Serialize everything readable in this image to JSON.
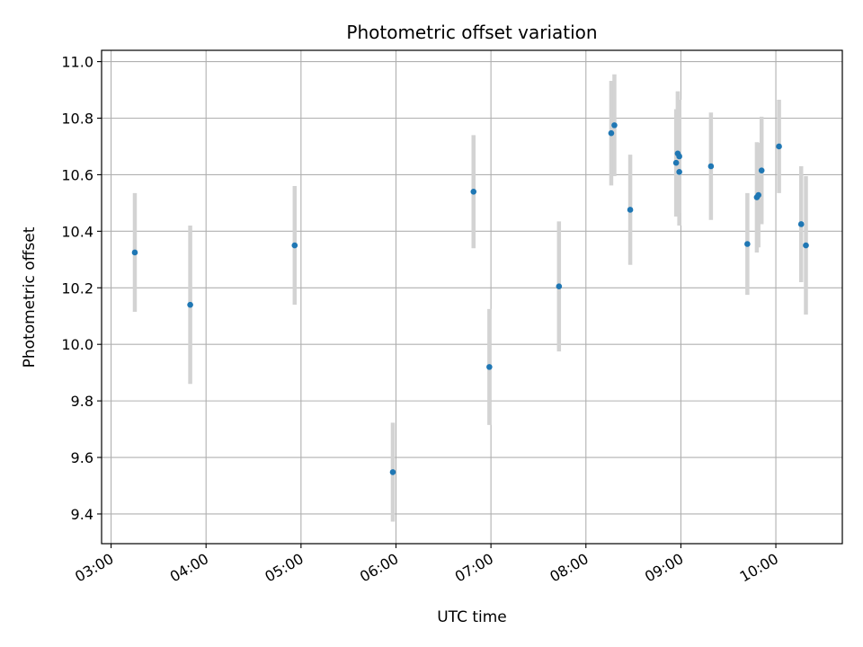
{
  "chart_data": {
    "type": "scatter",
    "title": "Photometric offset variation",
    "xlabel": "UTC time",
    "ylabel": "Photometric offset",
    "xlim": [
      "02:54",
      "10:42"
    ],
    "ylim": [
      9.295,
      11.04
    ],
    "grid": true,
    "x_ticks": [
      "03:00",
      "04:00",
      "05:00",
      "06:00",
      "07:00",
      "08:00",
      "09:00",
      "10:00"
    ],
    "y_ticks": [
      9.4,
      9.6,
      9.8,
      10.0,
      10.2,
      10.4,
      10.6,
      10.8,
      11.0
    ],
    "y_tick_labels": [
      "9.4",
      "9.6",
      "9.8",
      "10.0",
      "10.2",
      "10.4",
      "10.6",
      "10.8",
      "11.0"
    ],
    "colors": {
      "points": "#1f77b4",
      "errorbars": "#d3d3d3",
      "grid": "#b0b0b0"
    },
    "points": [
      {
        "x": "03:15",
        "y": 10.325,
        "yerr": 0.21
      },
      {
        "x": "03:50",
        "y": 10.14,
        "yerr": 0.28
      },
      {
        "x": "04:56",
        "y": 10.35,
        "yerr": 0.21
      },
      {
        "x": "05:58",
        "y": 9.548,
        "yerr": 0.175
      },
      {
        "x": "06:49",
        "y": 10.54,
        "yerr": 0.2
      },
      {
        "x": "06:59",
        "y": 9.92,
        "yerr": 0.205
      },
      {
        "x": "07:43",
        "y": 10.205,
        "yerr": 0.23
      },
      {
        "x": "08:16",
        "y": 10.747,
        "yerr": 0.185
      },
      {
        "x": "08:18",
        "y": 10.775,
        "yerr": 0.18
      },
      {
        "x": "08:28",
        "y": 10.476,
        "yerr": 0.195
      },
      {
        "x": "08:57",
        "y": 10.642,
        "yerr": 0.19
      },
      {
        "x": "08:58",
        "y": 10.675,
        "yerr": 0.22
      },
      {
        "x": "08:59",
        "y": 10.665,
        "yerr": 0.2
      },
      {
        "x": "08:59",
        "y": 10.61,
        "yerr": 0.19
      },
      {
        "x": "09:19",
        "y": 10.63,
        "yerr": 0.19
      },
      {
        "x": "09:42",
        "y": 10.355,
        "yerr": 0.18
      },
      {
        "x": "09:48",
        "y": 10.52,
        "yerr": 0.195
      },
      {
        "x": "09:49",
        "y": 10.528,
        "yerr": 0.185
      },
      {
        "x": "09:51",
        "y": 10.615,
        "yerr": 0.19
      },
      {
        "x": "10:02",
        "y": 10.7,
        "yerr": 0.165
      },
      {
        "x": "10:16",
        "y": 10.425,
        "yerr": 0.205
      },
      {
        "x": "10:19",
        "y": 10.35,
        "yerr": 0.245
      }
    ]
  }
}
